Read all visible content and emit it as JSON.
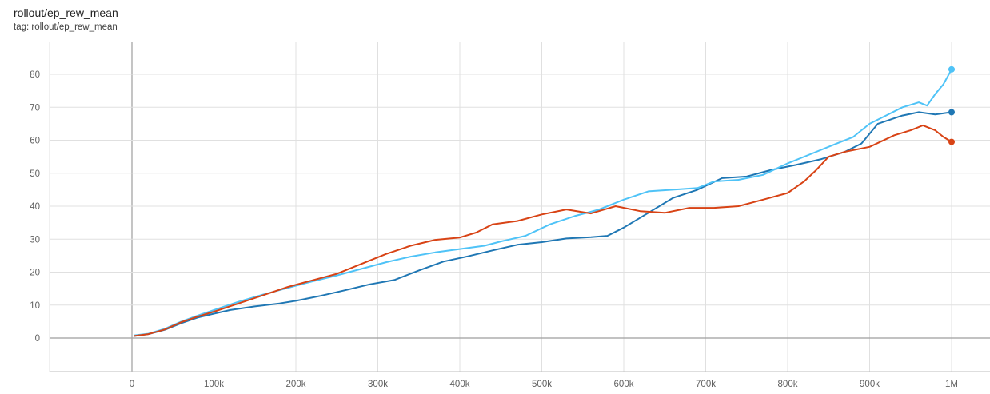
{
  "header": {
    "title": "rollout/ep_rew_mean",
    "subtitle": "tag: rollout/ep_rew_mean"
  },
  "chart_data": {
    "type": "line",
    "title": "rollout/ep_rew_mean",
    "xlabel": "",
    "ylabel": "",
    "xlim": [
      -100000,
      1040000
    ],
    "ylim": [
      -11,
      90
    ],
    "x_ticks": [
      0,
      100000,
      200000,
      300000,
      400000,
      500000,
      600000,
      700000,
      800000,
      900000,
      1000000
    ],
    "x_tick_labels": [
      "0",
      "100k",
      "200k",
      "300k",
      "400k",
      "500k",
      "600k",
      "700k",
      "800k",
      "900k",
      "1M"
    ],
    "y_ticks": [
      0,
      10,
      20,
      30,
      40,
      50,
      60,
      70,
      80
    ],
    "y_tick_labels": [
      "0",
      "10",
      "20",
      "30",
      "40",
      "50",
      "60",
      "70",
      "80"
    ],
    "grid": true,
    "legend": "none",
    "series": [
      {
        "color": "#1f77b4",
        "points": [
          [
            2000,
            0.6
          ],
          [
            20000,
            1.2
          ],
          [
            40000,
            2.5
          ],
          [
            60000,
            4.5
          ],
          [
            80000,
            6.2
          ],
          [
            100000,
            7.4
          ],
          [
            120000,
            8.5
          ],
          [
            150000,
            9.6
          ],
          [
            180000,
            10.5
          ],
          [
            200000,
            11.3
          ],
          [
            230000,
            12.8
          ],
          [
            260000,
            14.5
          ],
          [
            290000,
            16.3
          ],
          [
            320000,
            17.6
          ],
          [
            350000,
            20.5
          ],
          [
            380000,
            23.2
          ],
          [
            410000,
            24.8
          ],
          [
            440000,
            26.6
          ],
          [
            470000,
            28.3
          ],
          [
            500000,
            29.1
          ],
          [
            530000,
            30.2
          ],
          [
            560000,
            30.6
          ],
          [
            580000,
            31.0
          ],
          [
            600000,
            33.5
          ],
          [
            630000,
            38.0
          ],
          [
            660000,
            42.5
          ],
          [
            690000,
            45.0
          ],
          [
            720000,
            48.5
          ],
          [
            750000,
            49.0
          ],
          [
            780000,
            51.0
          ],
          [
            810000,
            52.5
          ],
          [
            840000,
            54.2
          ],
          [
            870000,
            56.5
          ],
          [
            890000,
            59.0
          ],
          [
            910000,
            65.0
          ],
          [
            940000,
            67.5
          ],
          [
            960000,
            68.5
          ],
          [
            980000,
            67.8
          ],
          [
            1000000,
            68.5
          ]
        ]
      },
      {
        "color": "#4fc3f7",
        "points": [
          [
            2000,
            0.8
          ],
          [
            20000,
            1.3
          ],
          [
            40000,
            2.8
          ],
          [
            60000,
            5.0
          ],
          [
            80000,
            6.8
          ],
          [
            100000,
            8.5
          ],
          [
            130000,
            11.0
          ],
          [
            160000,
            13.2
          ],
          [
            190000,
            15.2
          ],
          [
            220000,
            17.2
          ],
          [
            250000,
            19.0
          ],
          [
            280000,
            21.0
          ],
          [
            310000,
            23.0
          ],
          [
            340000,
            24.7
          ],
          [
            370000,
            26.0
          ],
          [
            400000,
            27.0
          ],
          [
            430000,
            28.0
          ],
          [
            450000,
            29.3
          ],
          [
            480000,
            31.0
          ],
          [
            510000,
            34.5
          ],
          [
            540000,
            37.0
          ],
          [
            570000,
            39.0
          ],
          [
            600000,
            42.0
          ],
          [
            630000,
            44.5
          ],
          [
            660000,
            45.0
          ],
          [
            690000,
            45.5
          ],
          [
            710000,
            47.5
          ],
          [
            740000,
            48.0
          ],
          [
            770000,
            49.5
          ],
          [
            800000,
            53.0
          ],
          [
            830000,
            56.0
          ],
          [
            860000,
            59.0
          ],
          [
            880000,
            61.0
          ],
          [
            900000,
            65.0
          ],
          [
            920000,
            67.5
          ],
          [
            940000,
            70.0
          ],
          [
            960000,
            71.5
          ],
          [
            970000,
            70.5
          ],
          [
            980000,
            74.0
          ],
          [
            990000,
            77.0
          ],
          [
            1000000,
            81.5
          ]
        ]
      },
      {
        "color": "#d84315",
        "points": [
          [
            2000,
            0.6
          ],
          [
            20000,
            1.2
          ],
          [
            40000,
            2.6
          ],
          [
            60000,
            4.8
          ],
          [
            80000,
            6.5
          ],
          [
            100000,
            8.0
          ],
          [
            130000,
            10.5
          ],
          [
            160000,
            13.0
          ],
          [
            190000,
            15.5
          ],
          [
            220000,
            17.5
          ],
          [
            250000,
            19.5
          ],
          [
            280000,
            22.5
          ],
          [
            310000,
            25.5
          ],
          [
            340000,
            28.0
          ],
          [
            370000,
            29.8
          ],
          [
            400000,
            30.5
          ],
          [
            420000,
            32.0
          ],
          [
            440000,
            34.5
          ],
          [
            470000,
            35.5
          ],
          [
            500000,
            37.5
          ],
          [
            530000,
            39.0
          ],
          [
            560000,
            37.8
          ],
          [
            590000,
            40.0
          ],
          [
            620000,
            38.5
          ],
          [
            650000,
            38.0
          ],
          [
            680000,
            39.5
          ],
          [
            710000,
            39.5
          ],
          [
            740000,
            40.0
          ],
          [
            770000,
            42.0
          ],
          [
            800000,
            44.0
          ],
          [
            820000,
            47.5
          ],
          [
            835000,
            51.0
          ],
          [
            850000,
            55.0
          ],
          [
            870000,
            56.5
          ],
          [
            900000,
            58.0
          ],
          [
            930000,
            61.5
          ],
          [
            950000,
            63.0
          ],
          [
            965000,
            64.5
          ],
          [
            980000,
            63.0
          ],
          [
            990000,
            61.0
          ],
          [
            1000000,
            59.5
          ]
        ]
      }
    ]
  }
}
